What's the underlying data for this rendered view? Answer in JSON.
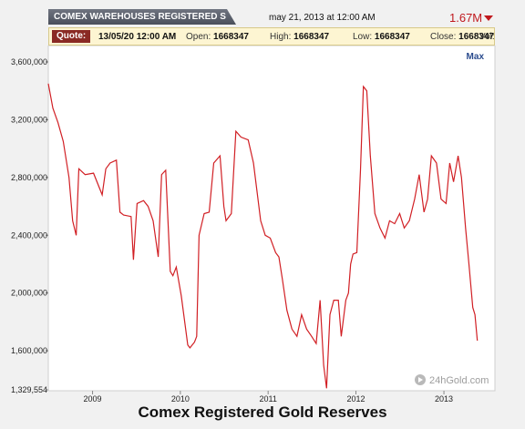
{
  "header": {
    "title_tab": "COMEX WAREHOUSES REGISTERED S",
    "date": "may 21, 2013 at 12:00 AM",
    "last_value": "1.67M",
    "trend": "down",
    "trend_color": "#c0191e"
  },
  "quote": {
    "label": "Quote:",
    "timestamp": "13/05/20 12:00 AM",
    "open_label": "Open:",
    "open_value": "1668347",
    "high_label": "High:",
    "high_value": "1668347",
    "low_label": "Low:",
    "low_value": "1668347",
    "close_label": "Close:",
    "close_value": "1668347",
    "vol_label": "Vol:",
    "vol_value": ""
  },
  "max_button": "Max",
  "watermark": "24hGold.com",
  "footer_title": "Comex Registered Gold Reserves",
  "colors": {
    "line": "#d11f24",
    "plot_bg": "#ffffff",
    "accent": "#8a2a24"
  },
  "chart_data": {
    "type": "line",
    "x_axis": "date",
    "y_tick_labels": [
      "3,600,000",
      "3,200,000",
      "2,800,000",
      "2,400,000",
      "2,000,000",
      "1,600,000",
      "1,329,554"
    ],
    "y_ticks": [
      3600000,
      3200000,
      2800000,
      2400000,
      2000000,
      1600000,
      1329554
    ],
    "ylim": [
      1329554,
      3600000
    ],
    "x_tick_labels": [
      "2009",
      "2010",
      "2011",
      "2012",
      "2013"
    ],
    "x_ticks": [
      "2009-01-01",
      "2010-01-01",
      "2011-01-01",
      "2012-01-01",
      "2013-01-01"
    ],
    "xlim": [
      "2008-07-01",
      "2013-08-01"
    ],
    "grid": false,
    "series": [
      {
        "x": [
          "2008-07-01",
          "2008-07-20",
          "2008-08-10",
          "2008-09-01",
          "2008-09-25",
          "2008-10-10",
          "2008-10-25",
          "2008-11-05",
          "2008-12-01",
          "2009-01-05",
          "2009-02-10",
          "2009-02-25",
          "2009-03-15",
          "2009-04-10",
          "2009-04-25",
          "2009-05-10",
          "2009-06-10",
          "2009-06-20",
          "2009-07-05",
          "2009-08-01",
          "2009-08-20",
          "2009-09-10",
          "2009-10-01",
          "2009-10-15",
          "2009-11-01",
          "2009-11-20",
          "2009-12-01",
          "2009-12-15",
          "2010-01-05",
          "2010-02-01",
          "2010-02-10",
          "2010-03-01",
          "2010-03-10",
          "2010-03-20",
          "2010-04-10",
          "2010-05-01",
          "2010-05-20",
          "2010-06-15",
          "2010-07-01",
          "2010-07-10",
          "2010-08-01",
          "2010-08-20",
          "2010-09-10",
          "2010-10-10",
          "2010-11-01",
          "2010-12-01",
          "2010-12-20",
          "2011-01-10",
          "2011-02-01",
          "2011-02-15",
          "2011-03-01",
          "2011-03-20",
          "2011-04-10",
          "2011-05-01",
          "2011-05-20",
          "2011-06-10",
          "2011-07-01",
          "2011-07-20",
          "2011-08-05",
          "2011-08-20",
          "2011-09-01",
          "2011-09-15",
          "2011-10-01",
          "2011-10-20",
          "2011-11-01",
          "2011-11-20",
          "2011-12-01",
          "2011-12-10",
          "2011-12-20",
          "2012-01-05",
          "2012-01-20",
          "2012-02-01",
          "2012-02-15",
          "2012-03-01",
          "2012-03-20",
          "2012-04-10",
          "2012-05-01",
          "2012-05-20",
          "2012-06-10",
          "2012-07-01",
          "2012-07-20",
          "2012-08-10",
          "2012-09-01",
          "2012-09-20",
          "2012-10-10",
          "2012-10-25",
          "2012-11-10",
          "2012-12-01",
          "2012-12-20",
          "2013-01-10",
          "2013-01-25",
          "2013-02-10",
          "2013-03-01",
          "2013-03-15",
          "2013-04-01",
          "2013-04-15",
          "2013-05-01",
          "2013-05-10",
          "2013-05-20"
        ],
        "y": [
          3450000,
          3280000,
          3180000,
          3050000,
          2800000,
          2500000,
          2400000,
          2860000,
          2820000,
          2830000,
          2680000,
          2860000,
          2900000,
          2920000,
          2560000,
          2540000,
          2530000,
          2230000,
          2620000,
          2640000,
          2600000,
          2500000,
          2250000,
          2820000,
          2850000,
          2150000,
          2120000,
          2180000,
          1980000,
          1640000,
          1620000,
          1660000,
          1700000,
          2400000,
          2550000,
          2560000,
          2900000,
          2950000,
          2600000,
          2500000,
          2550000,
          3120000,
          3080000,
          3060000,
          2900000,
          2500000,
          2400000,
          2380000,
          2280000,
          2250000,
          2100000,
          1880000,
          1750000,
          1700000,
          1850000,
          1750000,
          1700000,
          1650000,
          1950000,
          1500000,
          1340000,
          1850000,
          1950000,
          1950000,
          1700000,
          1950000,
          2000000,
          2200000,
          2270000,
          2280000,
          2850000,
          3430000,
          3400000,
          2950000,
          2550000,
          2450000,
          2380000,
          2500000,
          2480000,
          2550000,
          2450000,
          2500000,
          2650000,
          2820000,
          2560000,
          2650000,
          2950000,
          2900000,
          2650000,
          2620000,
          2900000,
          2770000,
          2950000,
          2800000,
          2450000,
          2200000,
          1900000,
          1850000,
          1670000
        ]
      }
    ]
  }
}
